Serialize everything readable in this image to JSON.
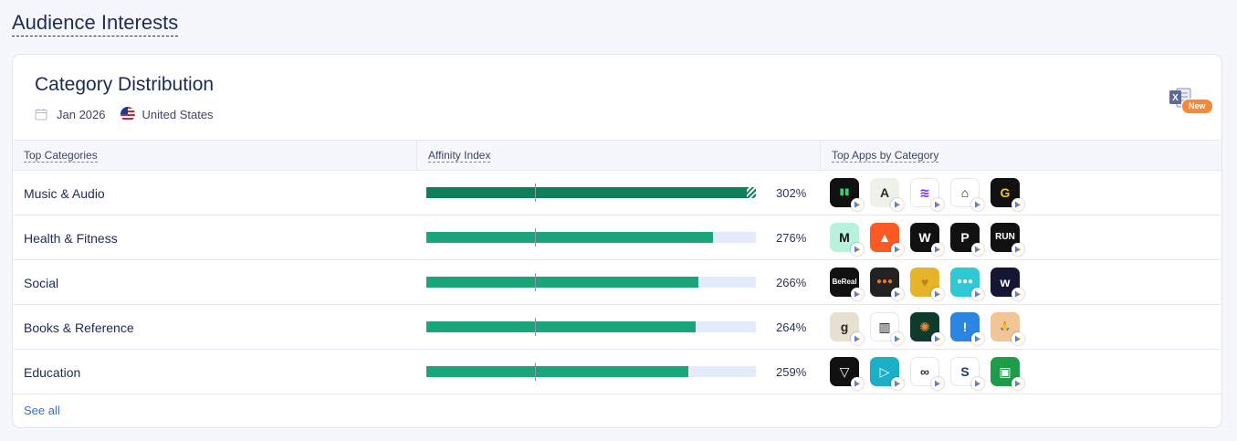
{
  "page": {
    "section_title": "Audience Interests"
  },
  "card": {
    "title": "Category Distribution",
    "date": "Jan 2026",
    "country": "United States",
    "badge": "New"
  },
  "table": {
    "headers": [
      "Top Categories",
      "Affinity Index",
      "Top Apps by Category"
    ],
    "max_index": 302,
    "rows": [
      {
        "category": "Music & Audio",
        "index": 302,
        "index_label": "302%",
        "apps": [
          {
            "icon": "bar-chart-app-icon",
            "bg": "#111111",
            "fg": "#2fd46b",
            "glyph": "▮▮"
          },
          {
            "icon": "airbuds-app-icon",
            "bg": "#eef2ea",
            "fg": "#2b2b2b",
            "glyph": "A"
          },
          {
            "icon": "spotify-app-icon",
            "bg": "#ffffff",
            "fg": "#7a2cf0",
            "glyph": "≋"
          },
          {
            "icon": "graduate-app-icon",
            "bg": "#ffffff",
            "fg": "#111111",
            "glyph": "⌂"
          },
          {
            "icon": "yellow-g-app-icon",
            "bg": "#111111",
            "fg": "#f5c518",
            "glyph": "G"
          }
        ]
      },
      {
        "category": "Health & Fitness",
        "index": 276,
        "index_label": "276%",
        "apps": [
          {
            "icon": "mint-m-app-icon",
            "bg": "#b7f3dc",
            "fg": "#111111",
            "glyph": "M"
          },
          {
            "icon": "strava-app-icon",
            "bg": "#fc5a22",
            "fg": "#ffffff",
            "glyph": "▲"
          },
          {
            "icon": "whoop-app-icon",
            "bg": "#111111",
            "fg": "#ffffff",
            "glyph": "W"
          },
          {
            "icon": "peloton-app-icon",
            "bg": "#111111",
            "fg": "#ffffff",
            "glyph": "P"
          },
          {
            "icon": "nike-run-app-icon",
            "bg": "#111111",
            "fg": "#ffffff",
            "glyph": "RUN"
          }
        ]
      },
      {
        "category": "Social",
        "index": 266,
        "index_label": "266%",
        "apps": [
          {
            "icon": "bereal-app-icon",
            "bg": "#111111",
            "fg": "#ffffff",
            "glyph": "BeReal"
          },
          {
            "icon": "dots-app-icon",
            "bg": "#222222",
            "fg": "#f0712c",
            "glyph": "●●●"
          },
          {
            "icon": "heart-app-icon",
            "bg": "#e4b52b",
            "fg": "#b8861a",
            "glyph": "♥"
          },
          {
            "icon": "chat-dots-app-icon",
            "bg": "#2fc9d6",
            "fg": "#ffffff",
            "glyph": "●●●"
          },
          {
            "icon": "w-app-icon",
            "bg": "#141633",
            "fg": "#ffffff",
            "glyph": "w"
          }
        ]
      },
      {
        "category": "Books & Reference",
        "index": 264,
        "index_label": "264%",
        "apps": [
          {
            "icon": "goodreads-app-icon",
            "bg": "#e8e1d2",
            "fg": "#2a2a2a",
            "glyph": "g"
          },
          {
            "icon": "library-app-icon",
            "bg": "#ffffff",
            "fg": "#111111",
            "glyph": "▥"
          },
          {
            "icon": "burst-app-icon",
            "bg": "#0e3b2e",
            "fg": "#e98b3a",
            "glyph": "✺"
          },
          {
            "icon": "exclamation-app-icon",
            "bg": "#2a86e0",
            "fg": "#ffffff",
            "glyph": "!"
          },
          {
            "icon": "praying-hands-app-icon",
            "bg": "#f1c596",
            "fg": "#ffffff",
            "glyph": "🙏"
          }
        ]
      },
      {
        "category": "Education",
        "index": 259,
        "index_label": "259%",
        "apps": [
          {
            "icon": "campus-app-icon",
            "bg": "#111111",
            "fg": "#ffffff",
            "glyph": "▽"
          },
          {
            "icon": "play-tutor-app-icon",
            "bg": "#1bb0c7",
            "fg": "#ffffff",
            "glyph": "▷"
          },
          {
            "icon": "handshake-app-icon",
            "bg": "#ffffff",
            "fg": "#333333",
            "glyph": "∞"
          },
          {
            "icon": "s-circle-app-icon",
            "bg": "#ffffff",
            "fg": "#1a3a6b",
            "glyph": "S"
          },
          {
            "icon": "google-classroom-app-icon",
            "bg": "#1f9c4a",
            "fg": "#ffffff",
            "glyph": "▣"
          }
        ]
      }
    ],
    "see_all": "See all"
  },
  "colors": {
    "bar": "#1aa57a",
    "bar_top": "#0e7f5a",
    "track": "#e3ebfb",
    "link": "#2f6fde"
  }
}
